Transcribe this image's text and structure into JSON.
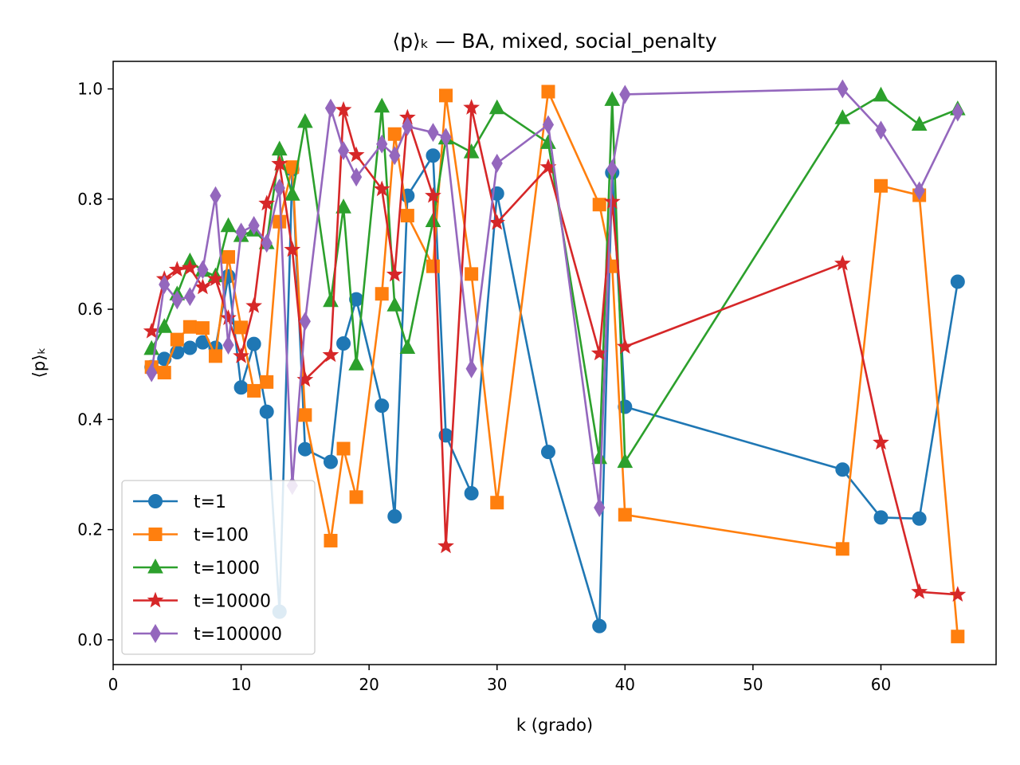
{
  "chart_data": {
    "type": "line",
    "title": "⟨p⟩ₖ — BA, mixed, social_penalty",
    "xlabel": "k (grado)",
    "ylabel": "⟨p⟩ₖ",
    "xlim": [
      0,
      69
    ],
    "ylim": [
      -0.045,
      1.05
    ],
    "xticks": [
      "0",
      "10",
      "20",
      "30",
      "40",
      "50",
      "60"
    ],
    "yticks": [
      "0.0",
      "0.2",
      "0.4",
      "0.6",
      "0.8",
      "1.0"
    ],
    "grid": false,
    "legend_position": "lower-left",
    "series": [
      {
        "name": "t=1",
        "color": "#1f77b4",
        "marker": "circle",
        "points": [
          [
            3,
            0.495
          ],
          [
            4,
            0.51
          ],
          [
            5,
            0.522
          ],
          [
            6,
            0.53
          ],
          [
            7,
            0.54
          ],
          [
            8,
            0.53
          ],
          [
            9,
            0.66
          ],
          [
            10,
            0.458
          ],
          [
            11,
            0.537
          ],
          [
            12,
            0.414
          ],
          [
            13,
            0.051
          ],
          [
            14,
            0.854
          ],
          [
            15,
            0.346
          ],
          [
            17,
            0.323
          ],
          [
            18,
            0.538
          ],
          [
            19,
            0.618
          ],
          [
            21,
            0.425
          ],
          [
            22,
            0.224
          ],
          [
            23,
            0.806
          ],
          [
            25,
            0.879
          ],
          [
            26,
            0.371
          ],
          [
            28,
            0.266
          ],
          [
            30,
            0.81
          ],
          [
            34,
            0.341
          ],
          [
            38,
            0.025
          ],
          [
            39,
            0.848
          ],
          [
            40,
            0.423
          ],
          [
            57,
            0.309
          ],
          [
            60,
            0.222
          ],
          [
            63,
            0.22
          ],
          [
            66,
            0.65
          ]
        ]
      },
      {
        "name": "t=100",
        "color": "#ff7f0e",
        "marker": "square",
        "points": [
          [
            3,
            0.495
          ],
          [
            4,
            0.485
          ],
          [
            5,
            0.545
          ],
          [
            6,
            0.568
          ],
          [
            7,
            0.566
          ],
          [
            8,
            0.515
          ],
          [
            9,
            0.695
          ],
          [
            10,
            0.567
          ],
          [
            11,
            0.452
          ],
          [
            12,
            0.468
          ],
          [
            13,
            0.759
          ],
          [
            14,
            0.858
          ],
          [
            15,
            0.408
          ],
          [
            17,
            0.18
          ],
          [
            18,
            0.347
          ],
          [
            19,
            0.259
          ],
          [
            21,
            0.628
          ],
          [
            22,
            0.918
          ],
          [
            23,
            0.77
          ],
          [
            25,
            0.678
          ],
          [
            26,
            0.988
          ],
          [
            28,
            0.664
          ],
          [
            30,
            0.249
          ],
          [
            34,
            0.995
          ],
          [
            38,
            0.79
          ],
          [
            39,
            0.678
          ],
          [
            40,
            0.227
          ],
          [
            57,
            0.165
          ],
          [
            60,
            0.824
          ],
          [
            63,
            0.807
          ],
          [
            66,
            0.006
          ]
        ]
      },
      {
        "name": "t=1000",
        "color": "#2ca02c",
        "marker": "triangle",
        "points": [
          [
            3,
            0.528
          ],
          [
            4,
            0.568
          ],
          [
            5,
            0.627
          ],
          [
            6,
            0.687
          ],
          [
            7,
            0.67
          ],
          [
            8,
            0.66
          ],
          [
            9,
            0.751
          ],
          [
            10,
            0.733
          ],
          [
            11,
            0.743
          ],
          [
            12,
            0.72
          ],
          [
            13,
            0.89
          ],
          [
            14,
            0.808
          ],
          [
            15,
            0.94
          ],
          [
            17,
            0.615
          ],
          [
            18,
            0.785
          ],
          [
            19,
            0.5
          ],
          [
            21,
            0.968
          ],
          [
            22,
            0.607
          ],
          [
            23,
            0.53
          ],
          [
            25,
            0.76
          ],
          [
            26,
            0.91
          ],
          [
            28,
            0.885
          ],
          [
            30,
            0.965
          ],
          [
            34,
            0.902
          ],
          [
            38,
            0.33
          ],
          [
            39,
            0.98
          ],
          [
            40,
            0.323
          ],
          [
            57,
            0.947
          ],
          [
            60,
            0.988
          ],
          [
            63,
            0.935
          ],
          [
            66,
            0.963
          ]
        ]
      },
      {
        "name": "t=10000",
        "color": "#d62728",
        "marker": "star",
        "points": [
          [
            3,
            0.56
          ],
          [
            4,
            0.655
          ],
          [
            5,
            0.672
          ],
          [
            6,
            0.675
          ],
          [
            7,
            0.64
          ],
          [
            8,
            0.655
          ],
          [
            9,
            0.584
          ],
          [
            10,
            0.515
          ],
          [
            11,
            0.606
          ],
          [
            12,
            0.792
          ],
          [
            13,
            0.864
          ],
          [
            14,
            0.708
          ],
          [
            15,
            0.472
          ],
          [
            17,
            0.517
          ],
          [
            18,
            0.962
          ],
          [
            19,
            0.88
          ],
          [
            21,
            0.818
          ],
          [
            22,
            0.663
          ],
          [
            23,
            0.948
          ],
          [
            25,
            0.806
          ],
          [
            26,
            0.17
          ],
          [
            28,
            0.966
          ],
          [
            30,
            0.757
          ],
          [
            34,
            0.858
          ],
          [
            38,
            0.52
          ],
          [
            39,
            0.795
          ],
          [
            40,
            0.532
          ],
          [
            57,
            0.683
          ],
          [
            60,
            0.358
          ],
          [
            63,
            0.087
          ],
          [
            66,
            0.082
          ]
        ]
      },
      {
        "name": "t=100000",
        "color": "#9467bd",
        "marker": "thin_diamond",
        "points": [
          [
            3,
            0.485
          ],
          [
            4,
            0.645
          ],
          [
            5,
            0.617
          ],
          [
            6,
            0.623
          ],
          [
            7,
            0.672
          ],
          [
            8,
            0.806
          ],
          [
            9,
            0.535
          ],
          [
            10,
            0.74
          ],
          [
            11,
            0.752
          ],
          [
            12,
            0.72
          ],
          [
            13,
            0.82
          ],
          [
            14,
            0.28
          ],
          [
            15,
            0.578
          ],
          [
            17,
            0.965
          ],
          [
            18,
            0.888
          ],
          [
            19,
            0.84
          ],
          [
            21,
            0.9
          ],
          [
            22,
            0.879
          ],
          [
            23,
            0.932
          ],
          [
            25,
            0.921
          ],
          [
            26,
            0.912
          ],
          [
            28,
            0.492
          ],
          [
            30,
            0.865
          ],
          [
            34,
            0.935
          ],
          [
            38,
            0.24
          ],
          [
            39,
            0.855
          ],
          [
            40,
            0.99
          ],
          [
            57,
            1.0
          ],
          [
            60,
            0.925
          ],
          [
            63,
            0.815
          ],
          [
            66,
            0.958
          ]
        ]
      }
    ]
  }
}
